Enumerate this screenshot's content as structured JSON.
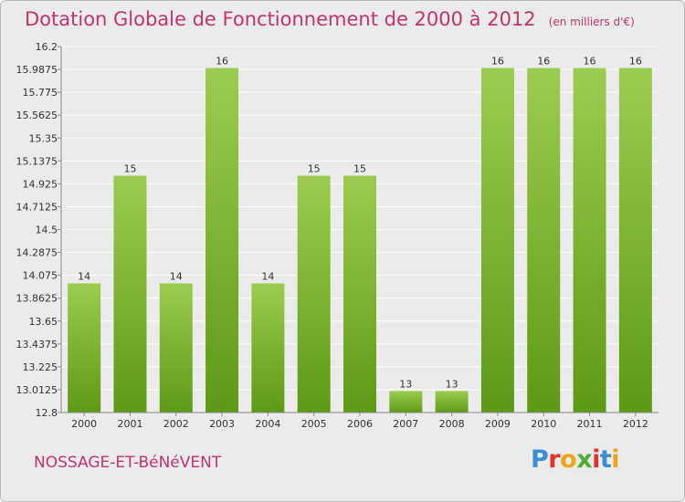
{
  "header": {
    "title": "Dotation Globale de Fonctionnement de 2000 à 2012",
    "subtitle": "(en milliers d'€)"
  },
  "footer": {
    "commune": "NOSSAGE-ET-BéNéVENT",
    "logo_letters": [
      "P",
      "r",
      "o",
      "x",
      "i",
      "t",
      "i"
    ],
    "logo_colors": [
      "#3a8fd4",
      "#e0352f",
      "#f0a418",
      "#4caf2f",
      "#e0352f",
      "#3a8fd4",
      "#f0a418"
    ]
  },
  "colors": {
    "bar_top": "#9ccc4f",
    "bar_bottom": "#5d9a14",
    "grid": "#ffffff",
    "accent": "#c4336b",
    "text": "#333333"
  },
  "chart_data": {
    "type": "bar",
    "title": "Dotation Globale de Fonctionnement de 2000 à 2012",
    "subtitle": "(en milliers d'€)",
    "xlabel": "",
    "ylabel": "",
    "categories": [
      "2000",
      "2001",
      "2002",
      "2003",
      "2004",
      "2005",
      "2006",
      "2007",
      "2008",
      "2009",
      "2010",
      "2011",
      "2012"
    ],
    "values": [
      14,
      15,
      14,
      16,
      14,
      15,
      15,
      13,
      13,
      16,
      16,
      16,
      16
    ],
    "ylim": [
      12.8,
      16.2
    ],
    "yticks": [
      "12.8",
      "13.0125",
      "13.225",
      "13.4375",
      "13.65",
      "13.8625",
      "14.075",
      "14.2875",
      "14.5",
      "14.7125",
      "14.925",
      "15.1375",
      "15.35",
      "15.5625",
      "15.775",
      "15.9875",
      "16.2"
    ],
    "grid": true,
    "legend": "none"
  }
}
